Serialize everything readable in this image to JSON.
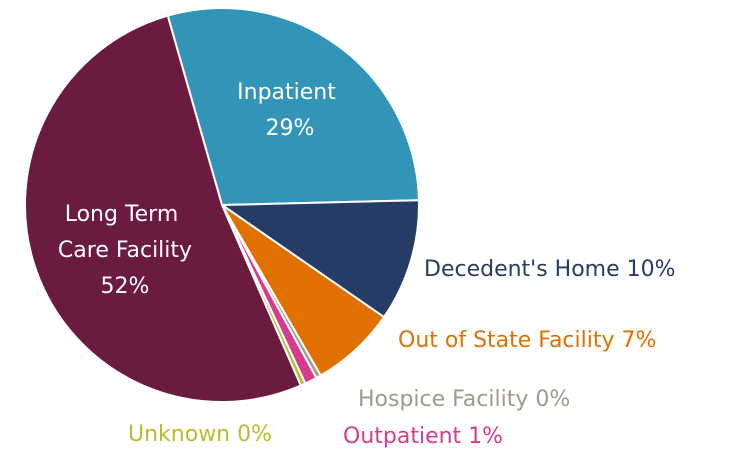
{
  "chart_data": {
    "type": "pie",
    "categories": [
      "Inpatient",
      "Decedent's Home",
      "Out of State Facility",
      "Hospice Facility",
      "Outpatient",
      "Unknown",
      "Long Term Care Facility"
    ],
    "values": [
      29,
      10,
      7,
      0.4,
      1,
      0.4,
      52
    ],
    "value_labels": [
      "29%",
      "10%",
      "7%",
      "0%",
      "1%",
      "0%",
      "52%"
    ],
    "colors": [
      "#3295b8",
      "#243c66",
      "#e07000",
      "#a09a8e",
      "#d43c8c",
      "#b5be2e",
      "#6b1a40"
    ]
  }
}
